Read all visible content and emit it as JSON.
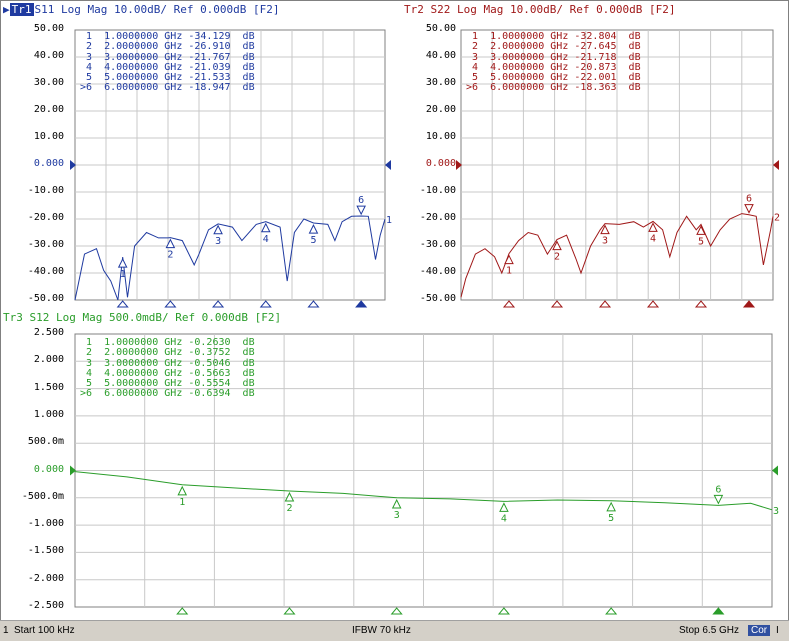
{
  "traces": [
    {
      "id": "tr1",
      "header": {
        "tag": "Tr1",
        "text": "S11 Log Mag 10.00dB/ Ref 0.000dB [F2]"
      },
      "color": "#1f3aa0",
      "tag_bg": "#1f3aa0",
      "y_labels": [
        "50.00",
        "40.00",
        "30.00",
        "20.00",
        "10.00",
        "0.000",
        "-10.00",
        "-20.00",
        "-30.00",
        "-40.00",
        "-50.00"
      ],
      "ref_label": "0.000",
      "markers": [
        "1  1.0000000 GHz -34.129  dB",
        "2  2.0000000 GHz -26.910  dB",
        "3  3.0000000 GHz -21.767  dB",
        "4  4.0000000 GHz -21.039  dB",
        "5  5.0000000 GHz -21.533  dB",
        ">6  6.0000000 GHz -18.947  dB"
      ],
      "chart_data": {
        "type": "line",
        "ylim": [
          -50,
          50
        ],
        "xlim_ghz": [
          0.0001,
          6.5
        ],
        "marker_points": [
          {
            "n": "1",
            "x": 1,
            "y": -34.129
          },
          {
            "n": "2",
            "x": 2,
            "y": -26.91
          },
          {
            "n": "3",
            "x": 3,
            "y": -21.767
          },
          {
            "n": "4",
            "x": 4,
            "y": -21.039
          },
          {
            "n": "5",
            "x": 5,
            "y": -21.533
          },
          {
            "n": "6",
            "x": 6,
            "y": -18.947
          }
        ],
        "curve": [
          [
            0,
            -50
          ],
          [
            0.2,
            -33
          ],
          [
            0.45,
            -31
          ],
          [
            0.6,
            -39
          ],
          [
            0.75,
            -43
          ],
          [
            0.9,
            -50
          ],
          [
            1.0,
            -34.1
          ],
          [
            1.1,
            -49
          ],
          [
            1.25,
            -30
          ],
          [
            1.5,
            -25
          ],
          [
            1.75,
            -27
          ],
          [
            1.95,
            -27
          ],
          [
            2.0,
            -26.9
          ],
          [
            2.25,
            -28
          ],
          [
            2.5,
            -37
          ],
          [
            2.6,
            -33
          ],
          [
            2.8,
            -24
          ],
          [
            3.0,
            -21.8
          ],
          [
            3.3,
            -23
          ],
          [
            3.5,
            -28
          ],
          [
            3.8,
            -22
          ],
          [
            4.0,
            -21.0
          ],
          [
            4.3,
            -23
          ],
          [
            4.45,
            -43
          ],
          [
            4.6,
            -25
          ],
          [
            4.8,
            -20
          ],
          [
            5.0,
            -21.5
          ],
          [
            5.3,
            -22
          ],
          [
            5.45,
            -28
          ],
          [
            5.6,
            -21
          ],
          [
            5.8,
            -19
          ],
          [
            6.0,
            -18.9
          ],
          [
            6.15,
            -19
          ],
          [
            6.3,
            -35
          ],
          [
            6.4,
            -26
          ],
          [
            6.5,
            -20
          ]
        ]
      },
      "end_label": "1",
      "marker_tag_6": "6"
    },
    {
      "id": "tr2",
      "header": {
        "tag": "Tr2",
        "text": "S22 Log Mag 10.00dB/ Ref 0.000dB [F2]"
      },
      "color": "#a01818",
      "y_labels": [
        "50.00",
        "40.00",
        "30.00",
        "20.00",
        "10.00",
        "0.000",
        "-10.00",
        "-20.00",
        "-30.00",
        "-40.00",
        "-50.00"
      ],
      "ref_label": "0.000",
      "markers": [
        "1  1.0000000 GHz -32.804  dB",
        "2  2.0000000 GHz -27.645  dB",
        "3  3.0000000 GHz -21.718  dB",
        "4  4.0000000 GHz -20.873  dB",
        "5  5.0000000 GHz -22.001  dB",
        ">6  6.0000000 GHz -18.363  dB"
      ],
      "chart_data": {
        "type": "line",
        "ylim": [
          -50,
          50
        ],
        "xlim_ghz": [
          0.0001,
          6.5
        ],
        "marker_points": [
          {
            "n": "1",
            "x": 1,
            "y": -32.804
          },
          {
            "n": "2",
            "x": 2,
            "y": -27.645
          },
          {
            "n": "3",
            "x": 3,
            "y": -21.718
          },
          {
            "n": "4",
            "x": 4,
            "y": -20.873
          },
          {
            "n": "5",
            "x": 5,
            "y": -22.001
          },
          {
            "n": "6",
            "x": 6,
            "y": -18.363
          }
        ],
        "curve": [
          [
            0,
            -49
          ],
          [
            0.1,
            -42
          ],
          [
            0.3,
            -33
          ],
          [
            0.5,
            -31
          ],
          [
            0.7,
            -34
          ],
          [
            0.85,
            -40
          ],
          [
            1.0,
            -32.8
          ],
          [
            1.2,
            -28
          ],
          [
            1.4,
            -25
          ],
          [
            1.6,
            -26
          ],
          [
            1.8,
            -33
          ],
          [
            2.0,
            -27.6
          ],
          [
            2.2,
            -26
          ],
          [
            2.4,
            -35
          ],
          [
            2.5,
            -40
          ],
          [
            2.7,
            -30
          ],
          [
            2.9,
            -24
          ],
          [
            3.0,
            -21.7
          ],
          [
            3.3,
            -22
          ],
          [
            3.6,
            -21
          ],
          [
            3.8,
            -23
          ],
          [
            4.0,
            -20.9
          ],
          [
            4.2,
            -24
          ],
          [
            4.35,
            -34
          ],
          [
            4.5,
            -25
          ],
          [
            4.7,
            -19
          ],
          [
            4.9,
            -24
          ],
          [
            5.0,
            -22
          ],
          [
            5.2,
            -30
          ],
          [
            5.4,
            -24
          ],
          [
            5.6,
            -20
          ],
          [
            5.85,
            -18
          ],
          [
            6.0,
            -18.4
          ],
          [
            6.15,
            -19
          ],
          [
            6.3,
            -37
          ],
          [
            6.45,
            -24
          ],
          [
            6.5,
            -19
          ]
        ]
      },
      "end_label": "2",
      "marker_tag_6": "6"
    },
    {
      "id": "tr3",
      "header": {
        "tag": "Tr3",
        "text": "S12 Log Mag 500.0mdB/ Ref 0.000dB [F2]"
      },
      "color": "#2a9d2a",
      "y_labels": [
        "2.500",
        "2.000",
        "1.500",
        "1.000",
        "500.0m",
        "0.000",
        "-500.0m",
        "-1.000",
        "-1.500",
        "-2.000",
        "-2.500"
      ],
      "ref_label": "0.000",
      "markers": [
        "1  1.0000000 GHz -0.2630  dB",
        "2  2.0000000 GHz -0.3752  dB",
        "3  3.0000000 GHz -0.5046  dB",
        "4  4.0000000 GHz -0.5663  dB",
        "5  5.0000000 GHz -0.5554  dB",
        ">6  6.0000000 GHz -0.6394  dB"
      ],
      "chart_data": {
        "type": "line",
        "ylim": [
          -2.5,
          2.5
        ],
        "xlim_ghz": [
          0.0001,
          6.5
        ],
        "marker_points": [
          {
            "n": "1",
            "x": 1,
            "y": -0.263
          },
          {
            "n": "2",
            "x": 2,
            "y": -0.3752
          },
          {
            "n": "3",
            "x": 3,
            "y": -0.5046
          },
          {
            "n": "4",
            "x": 4,
            "y": -0.5663
          },
          {
            "n": "5",
            "x": 5,
            "y": -0.5554
          },
          {
            "n": "6",
            "x": 6,
            "y": -0.6394
          }
        ],
        "curve": [
          [
            0,
            -0.02
          ],
          [
            0.5,
            -0.12
          ],
          [
            1.0,
            -0.26
          ],
          [
            1.5,
            -0.32
          ],
          [
            2.0,
            -0.375
          ],
          [
            2.5,
            -0.42
          ],
          [
            3.0,
            -0.5
          ],
          [
            3.5,
            -0.52
          ],
          [
            4.0,
            -0.566
          ],
          [
            4.5,
            -0.54
          ],
          [
            5.0,
            -0.555
          ],
          [
            5.5,
            -0.59
          ],
          [
            6.0,
            -0.639
          ],
          [
            6.3,
            -0.6
          ],
          [
            6.5,
            -0.72
          ]
        ]
      },
      "end_label": "3",
      "marker_tag_6": "6"
    }
  ],
  "status": {
    "channel": "1",
    "start": "Start 100 kHz",
    "ifbw": "IFBW 70 kHz",
    "stop": "Stop 6.5 GHz",
    "cor": "Cor",
    "last": "I"
  }
}
